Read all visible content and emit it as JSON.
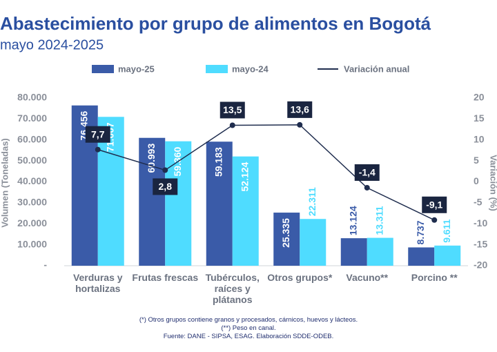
{
  "chart_data": {
    "type": "bar",
    "title": "Abastecimiento por grupo de alimentos en Bogotá",
    "subtitle": "mayo 2024-2025",
    "y_label": "Volumen (Toneladas)",
    "y2_label": "Variación (%)",
    "categories": [
      "Verduras y hortalizas",
      "Frutas frescas",
      "Tubérculos, raíces y plátanos",
      "Otros grupos*",
      "Vacuno**",
      "Porcino **"
    ],
    "series": [
      {
        "name": "mayo-25",
        "color": "#3a5ba8",
        "type": "bar",
        "values": [
          76456,
          60993,
          59183,
          25335,
          13124,
          8737
        ],
        "value_labels": [
          "76.456",
          "60.993",
          "59.183",
          "25.335",
          "13.124",
          "8.737"
        ]
      },
      {
        "name": "mayo-24",
        "color": "#4fdcff",
        "type": "bar",
        "values": [
          71007,
          59360,
          52124,
          22311,
          13311,
          9611
        ],
        "value_labels": [
          "71.007",
          "59.360",
          "52.124",
          "22.311",
          "13.311",
          "9.611"
        ]
      },
      {
        "name": "Variación anual",
        "color": "#1f2d4e",
        "type": "line",
        "axis": "y2",
        "values": [
          7.7,
          2.8,
          13.5,
          13.6,
          -1.4,
          -9.1
        ],
        "value_labels": [
          "7,7",
          "2,8",
          "13,5",
          "13,6",
          "-1,4",
          "-9,1"
        ]
      }
    ],
    "ylim": [
      0,
      80000
    ],
    "yticks": [
      {
        "value": 0,
        "label": "-"
      },
      {
        "value": 10000,
        "label": "10.000"
      },
      {
        "value": 20000,
        "label": "20.000"
      },
      {
        "value": 30000,
        "label": "30.000"
      },
      {
        "value": 40000,
        "label": "40.000"
      },
      {
        "value": 50000,
        "label": "50.000"
      },
      {
        "value": 60000,
        "label": "60.000"
      },
      {
        "value": 70000,
        "label": "70.000"
      },
      {
        "value": 80000,
        "label": "80.000"
      }
    ],
    "y2lim": [
      -20,
      20
    ],
    "y2ticks": [
      -20,
      -15,
      -10,
      -5,
      0,
      5,
      10,
      15,
      20
    ],
    "notes": [
      "(*) Otros grupos contiene granos y procesados, cárnicos, huevos y lácteos.",
      "(**) Peso en canal.",
      "Fuente: DANE - SIPSA, ESAG. Elaboración SDDE-ODEB."
    ]
  }
}
